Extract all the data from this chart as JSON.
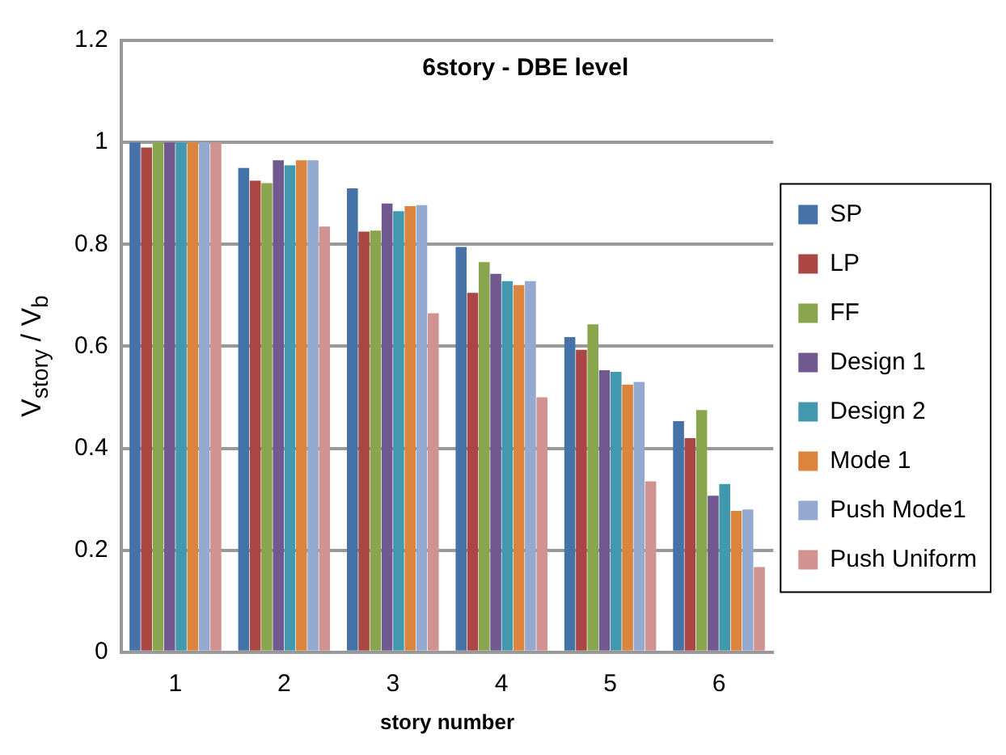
{
  "chart_data": {
    "type": "bar",
    "title": "6story - DBE level",
    "xlabel": "story number",
    "ylabel": "V$_{story}$ / V$_{b}$",
    "categories": [
      "1",
      "2",
      "3",
      "4",
      "5",
      "6"
    ],
    "series": [
      {
        "name": "SP",
        "color": "#4572a7",
        "values": [
          1.0,
          0.95,
          0.91,
          0.795,
          0.618,
          0.453
        ]
      },
      {
        "name": "LP",
        "color": "#aa4643",
        "values": [
          0.99,
          0.925,
          0.825,
          0.705,
          0.593,
          0.42
        ]
      },
      {
        "name": "FF",
        "color": "#89a54e",
        "values": [
          1.0,
          0.92,
          0.827,
          0.765,
          0.643,
          0.475
        ]
      },
      {
        "name": "Design 1",
        "color": "#71588f",
        "values": [
          1.0,
          0.965,
          0.88,
          0.742,
          0.553,
          0.307
        ]
      },
      {
        "name": "Design 2",
        "color": "#4198af",
        "values": [
          1.0,
          0.955,
          0.865,
          0.728,
          0.55,
          0.33
        ]
      },
      {
        "name": "Mode 1",
        "color": "#db843d",
        "values": [
          1.0,
          0.965,
          0.875,
          0.72,
          0.525,
          0.277
        ]
      },
      {
        "name": "Push Mode1",
        "color": "#93a9cf",
        "values": [
          1.0,
          0.965,
          0.877,
          0.728,
          0.53,
          0.28
        ]
      },
      {
        "name": "Push Uniform",
        "color": "#d19392",
        "values": [
          1.0,
          0.835,
          0.665,
          0.5,
          0.335,
          0.167
        ]
      }
    ],
    "ylim": [
      0,
      1.2
    ],
    "yticks": [
      0,
      0.2,
      0.4,
      0.6,
      0.8,
      1,
      1.2
    ],
    "grid": "y",
    "legend": "right"
  }
}
